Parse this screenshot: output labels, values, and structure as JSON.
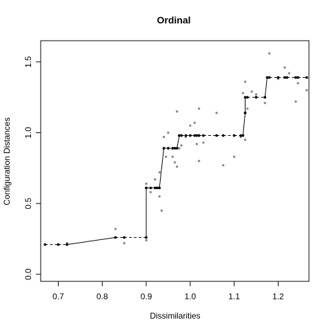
{
  "chart_data": {
    "type": "scatter",
    "title": "Ordinal",
    "xlabel": "Dissimilarities",
    "ylabel": "Configuration Distances",
    "xlim": [
      0.66,
      1.27
    ],
    "ylim": [
      -0.05,
      1.65
    ],
    "xticks": [
      0.7,
      0.8,
      0.9,
      1.0,
      1.1,
      1.2
    ],
    "yticks": [
      0.0,
      0.5,
      1.0,
      1.5
    ],
    "xtick_labels": [
      "0.7",
      "0.8",
      "0.9",
      "1.0",
      "1.1",
      "1.2"
    ],
    "ytick_labels": [
      "0.0",
      "0.5",
      "1.0",
      "1.5"
    ],
    "grid": false,
    "colors": {
      "observed": "#8c8c8c",
      "fitted": "#000000"
    },
    "observed": [
      [
        0.67,
        0.21
      ],
      [
        0.7,
        0.21
      ],
      [
        0.72,
        0.22
      ],
      [
        0.83,
        0.32
      ],
      [
        0.85,
        0.22
      ],
      [
        0.9,
        0.24
      ],
      [
        0.9,
        0.64
      ],
      [
        0.91,
        0.58
      ],
      [
        0.92,
        0.67
      ],
      [
        0.93,
        0.55
      ],
      [
        0.93,
        0.72
      ],
      [
        0.935,
        0.45
      ],
      [
        0.94,
        0.97
      ],
      [
        0.945,
        0.83
      ],
      [
        0.95,
        1.0
      ],
      [
        0.96,
        0.83
      ],
      [
        0.965,
        0.79
      ],
      [
        0.97,
        0.76
      ],
      [
        0.97,
        1.15
      ],
      [
        0.975,
        0.89
      ],
      [
        0.98,
        0.91
      ],
      [
        0.99,
        0.97
      ],
      [
        1.0,
        1.05
      ],
      [
        1.01,
        1.07
      ],
      [
        1.015,
        0.92
      ],
      [
        1.02,
        1.17
      ],
      [
        1.02,
        0.8
      ],
      [
        1.03,
        0.93
      ],
      [
        1.06,
        1.14
      ],
      [
        1.075,
        0.77
      ],
      [
        1.1,
        0.83
      ],
      [
        1.115,
        0.97
      ],
      [
        1.12,
        1.28
      ],
      [
        1.125,
        0.95
      ],
      [
        1.125,
        1.36
      ],
      [
        1.13,
        1.17
      ],
      [
        1.14,
        1.29
      ],
      [
        1.15,
        1.27
      ],
      [
        1.17,
        1.21
      ],
      [
        1.18,
        1.56
      ],
      [
        1.2,
        1.38
      ],
      [
        1.215,
        1.46
      ],
      [
        1.225,
        1.42
      ],
      [
        1.24,
        1.22
      ],
      [
        1.245,
        1.35
      ],
      [
        1.265,
        1.3
      ]
    ],
    "fitted": [
      [
        0.67,
        0.21
      ],
      [
        0.7,
        0.21
      ],
      [
        0.72,
        0.21
      ],
      [
        0.83,
        0.26
      ],
      [
        0.85,
        0.26
      ],
      [
        0.9,
        0.26
      ],
      [
        0.9,
        0.61
      ],
      [
        0.91,
        0.61
      ],
      [
        0.92,
        0.61
      ],
      [
        0.925,
        0.61
      ],
      [
        0.93,
        0.61
      ],
      [
        0.94,
        0.89
      ],
      [
        0.95,
        0.89
      ],
      [
        0.96,
        0.89
      ],
      [
        0.965,
        0.89
      ],
      [
        0.97,
        0.89
      ],
      [
        0.975,
        0.98
      ],
      [
        0.98,
        0.98
      ],
      [
        0.99,
        0.98
      ],
      [
        1.0,
        0.98
      ],
      [
        1.01,
        0.98
      ],
      [
        1.015,
        0.98
      ],
      [
        1.02,
        0.98
      ],
      [
        1.03,
        0.98
      ],
      [
        1.06,
        0.98
      ],
      [
        1.075,
        0.98
      ],
      [
        1.1,
        0.98
      ],
      [
        1.115,
        0.98
      ],
      [
        1.12,
        0.98
      ],
      [
        1.125,
        1.14
      ],
      [
        1.125,
        1.25
      ],
      [
        1.13,
        1.25
      ],
      [
        1.15,
        1.25
      ],
      [
        1.17,
        1.25
      ],
      [
        1.175,
        1.39
      ],
      [
        1.18,
        1.39
      ],
      [
        1.2,
        1.39
      ],
      [
        1.215,
        1.39
      ],
      [
        1.22,
        1.39
      ],
      [
        1.24,
        1.39
      ],
      [
        1.245,
        1.39
      ],
      [
        1.265,
        1.39
      ]
    ]
  }
}
